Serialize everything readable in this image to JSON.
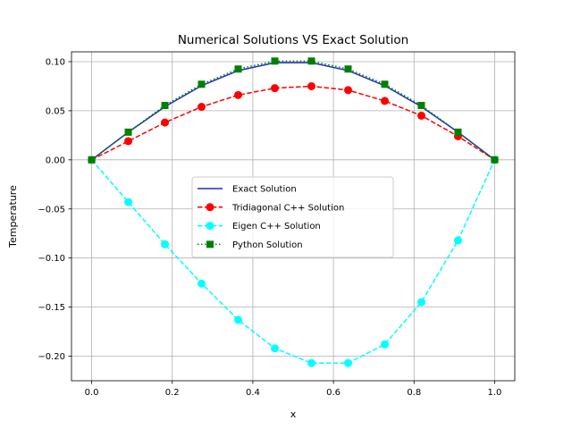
{
  "chart_data": {
    "type": "line",
    "title": "Numerical Solutions VS Exact Solution",
    "xlabel": "x",
    "ylabel": "Temperature",
    "xlim": [
      -0.05,
      1.05
    ],
    "ylim": [
      -0.225,
      0.11
    ],
    "xticks": [
      0.0,
      0.2,
      0.4,
      0.6,
      0.8,
      1.0
    ],
    "xtick_labels": [
      "0.0",
      "0.2",
      "0.4",
      "0.6",
      "0.8",
      "1.0"
    ],
    "yticks": [
      0.1,
      0.05,
      0.0,
      -0.05,
      -0.1,
      -0.15,
      -0.2
    ],
    "ytick_labels": [
      "0.10",
      "0.05",
      "0.00",
      "−0.05",
      "−0.10",
      "−0.15",
      "−0.20"
    ],
    "grid": true,
    "legend_position": "center",
    "x": [
      0.0,
      0.0909,
      0.1818,
      0.2727,
      0.3636,
      0.4545,
      0.5455,
      0.6364,
      0.7273,
      0.8182,
      0.9091,
      1.0
    ],
    "series": [
      {
        "name": "Exact Solution",
        "color": "#1f2fbf",
        "line": "solid",
        "marker": "none",
        "values": [
          0.0,
          0.0282,
          0.0541,
          0.0755,
          0.0909,
          0.099,
          0.099,
          0.0909,
          0.0755,
          0.0541,
          0.0282,
          0.0
        ]
      },
      {
        "name": "Tridiagonal C++ Solution",
        "color": "#ff0000",
        "line": "dashed",
        "marker": "circle",
        "values": [
          0.0,
          0.019,
          0.038,
          0.054,
          0.066,
          0.073,
          0.075,
          0.071,
          0.06,
          0.045,
          0.024,
          0.0
        ]
      },
      {
        "name": "Eigen C++ Solution",
        "color": "#00ffff",
        "line": "dashed",
        "marker": "circle",
        "values": [
          0.0,
          -0.043,
          -0.086,
          -0.126,
          -0.163,
          -0.192,
          -0.207,
          -0.207,
          -0.188,
          -0.145,
          -0.082,
          0.0
        ]
      },
      {
        "name": "Python Solution",
        "color": "#008000",
        "line": "dotted",
        "marker": "square",
        "values": [
          0.0,
          0.0282,
          0.0554,
          0.077,
          0.0925,
          0.1006,
          0.1006,
          0.0925,
          0.077,
          0.0554,
          0.0282,
          0.0
        ]
      }
    ]
  }
}
